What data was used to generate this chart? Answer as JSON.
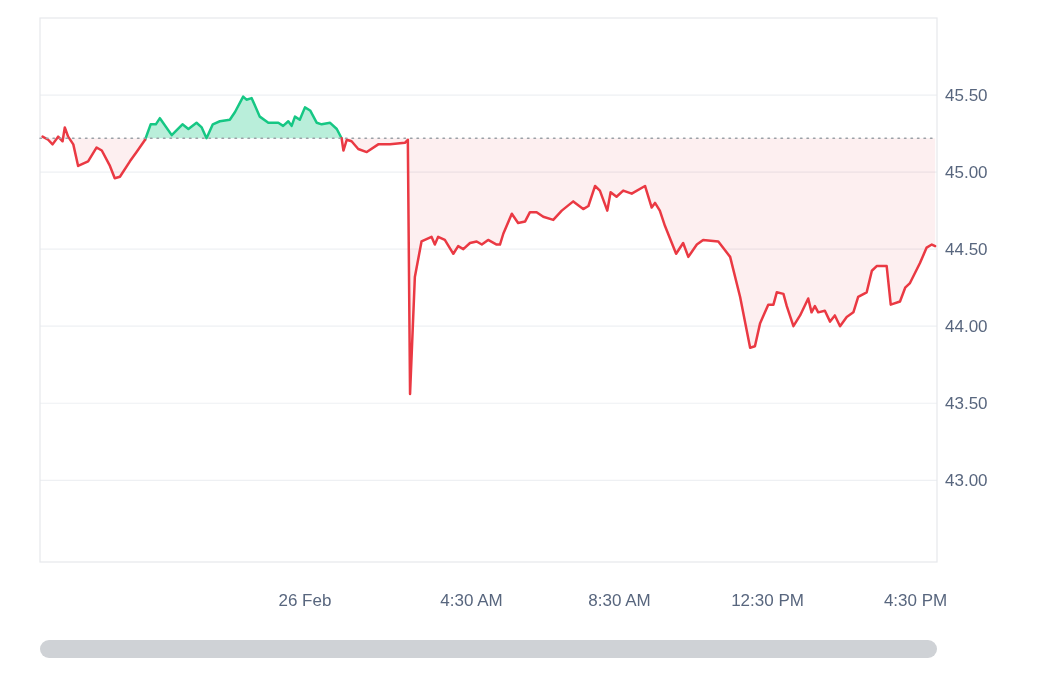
{
  "chart_data": {
    "type": "area",
    "x": [
      -7.09,
      -6.94,
      -6.82,
      -6.67,
      -6.55,
      -6.49,
      -6.4,
      -6.26,
      -6.13,
      -5.86,
      -5.63,
      -5.49,
      -5.27,
      -5.14,
      -5.0,
      -4.73,
      -4.55,
      -4.32,
      -4.17,
      -4.03,
      -3.92,
      -3.6,
      -3.31,
      -3.15,
      -2.93,
      -2.79,
      -2.66,
      -2.49,
      -2.3,
      -2.03,
      -1.89,
      -1.67,
      -1.58,
      -1.44,
      -1.22,
      -0.99,
      -0.72,
      -0.59,
      -0.45,
      -0.36,
      -0.27,
      -0.14,
      0,
      0.14,
      0.32,
      0.45,
      0.68,
      0.86,
      0.99,
      1.04,
      1.13,
      1.26,
      1.44,
      1.67,
      1.98,
      2.3,
      2.7,
      2.78,
      2.84,
      2.97,
      3.15,
      3.42,
      3.51,
      3.6,
      3.78,
      4.01,
      4.14,
      4.28,
      4.46,
      4.64,
      4.78,
      4.95,
      5.18,
      5.27,
      5.36,
      5.59,
      5.76,
      5.95,
      6.08,
      6.26,
      6.44,
      6.71,
      6.94,
      7.25,
      7.52,
      7.66,
      7.84,
      7.97,
      8.17,
      8.26,
      8.42,
      8.6,
      8.83,
      9.19,
      9.37,
      9.46,
      9.59,
      9.73,
      10.03,
      10.22,
      10.36,
      10.59,
      10.76,
      11.17,
      11.49,
      11.76,
      12.03,
      12.16,
      12.3,
      12.52,
      12.66,
      12.75,
      12.93,
      13.02,
      13.2,
      13.38,
      13.6,
      13.69,
      13.78,
      13.87,
      14.05,
      14.19,
      14.32,
      14.46,
      14.64,
      14.82,
      14.95,
      15.18,
      15.32,
      15.45,
      15.72,
      15.83,
      16.08,
      16.22,
      16.35,
      16.62,
      16.8,
      16.94,
      17.03
    ],
    "series": [
      {
        "color": "#16c784",
        "values": [
          null,
          null,
          null,
          null,
          null,
          null,
          null,
          null,
          null,
          null,
          null,
          null,
          null,
          null,
          null,
          null,
          null,
          45.21,
          45.31,
          45.31,
          45.35,
          45.24,
          45.31,
          45.28,
          45.32,
          45.29,
          45.22,
          45.31,
          45.33,
          45.34,
          45.39,
          45.49,
          45.47,
          45.48,
          45.36,
          45.32,
          45.32,
          45.3,
          45.33,
          45.3,
          45.36,
          45.34,
          45.42,
          45.4,
          45.32,
          45.31,
          45.32,
          45.28,
          45.22,
          null,
          null,
          null,
          null,
          null,
          null,
          null,
          null,
          null,
          null,
          null,
          null,
          null,
          null,
          null,
          null,
          null,
          null,
          null,
          null,
          null,
          null,
          null,
          null,
          null,
          null,
          null,
          null,
          null,
          null,
          null,
          null,
          null,
          null,
          null,
          null,
          null,
          null,
          null,
          null,
          null,
          null,
          null,
          null,
          null,
          null,
          null,
          null,
          null,
          null,
          null,
          null,
          null,
          null,
          null,
          null,
          null,
          null,
          null,
          null,
          null,
          null,
          null,
          null,
          null,
          null,
          null,
          null,
          null,
          null,
          null,
          null,
          null,
          null,
          null,
          null,
          null,
          null,
          null,
          null,
          null,
          null,
          null,
          null,
          null,
          null,
          null,
          null,
          null,
          null
        ]
      },
      {
        "type": "line",
        "color": "#ea3943",
        "values": [
          45.23,
          45.21,
          45.18,
          45.23,
          45.2,
          45.29,
          45.23,
          45.18,
          45.04,
          45.07,
          45.16,
          45.14,
          45.04,
          44.96,
          44.97,
          45.07,
          45.13,
          45.21,
          null,
          null,
          null,
          null,
          null,
          null,
          null,
          null,
          null,
          null,
          null,
          null,
          null,
          null,
          null,
          null,
          null,
          null,
          null,
          null,
          null,
          null,
          null,
          null,
          null,
          null,
          null,
          null,
          null,
          null,
          45.22,
          45.14,
          45.21,
          45.2,
          45.15,
          45.13,
          45.18,
          45.18,
          45.19,
          45.21,
          43.56,
          44.32,
          44.55,
          44.58,
          44.53,
          44.58,
          44.56,
          44.47,
          44.52,
          44.5,
          44.54,
          44.55,
          44.53,
          44.56,
          44.53,
          44.53,
          44.6,
          44.73,
          44.67,
          44.68,
          44.74,
          44.74,
          44.71,
          44.69,
          44.75,
          44.81,
          44.76,
          44.78,
          44.91,
          44.88,
          44.75,
          44.87,
          44.84,
          44.88,
          44.86,
          44.91,
          44.77,
          44.8,
          44.75,
          44.65,
          44.47,
          44.54,
          44.45,
          44.53,
          44.56,
          44.55,
          44.45,
          44.19,
          43.86,
          43.87,
          44.02,
          44.14,
          44.14,
          44.22,
          44.21,
          44.13,
          44.0,
          44.07,
          44.18,
          44.09,
          44.13,
          44.09,
          44.1,
          44.03,
          44.07,
          44.0,
          44.06,
          44.09,
          44.19,
          44.22,
          44.36,
          44.39,
          44.39,
          44.14,
          44.16,
          44.25,
          44.28,
          44.41,
          44.51,
          44.53,
          44.52
        ]
      }
    ],
    "xlim": [
      -7.16,
      17.08
    ],
    "xticks": [
      {
        "value": 0,
        "label": "26 Feb"
      },
      {
        "value": 4.5,
        "label": "4:30 AM"
      },
      {
        "value": 8.5,
        "label": "8:30 AM"
      },
      {
        "value": 12.5,
        "label": "12:30 PM"
      },
      {
        "value": 16.5,
        "label": "4:30 PM"
      }
    ],
    "ylim": [
      42.47,
      46.0
    ],
    "yticks": [
      {
        "value": 43,
        "label": "43.00"
      },
      {
        "value": 43.5,
        "label": "43.50"
      },
      {
        "value": 44,
        "label": "44.00"
      },
      {
        "value": 44.5,
        "label": "44.50"
      },
      {
        "value": 45,
        "label": "45.00"
      },
      {
        "value": 45.5,
        "label": "45.50"
      }
    ],
    "ref_lines": [
      {
        "axis": "y",
        "value": 45.22,
        "color": "#9aa0a6",
        "line_style": "dotted"
      }
    ],
    "grid": "y"
  }
}
